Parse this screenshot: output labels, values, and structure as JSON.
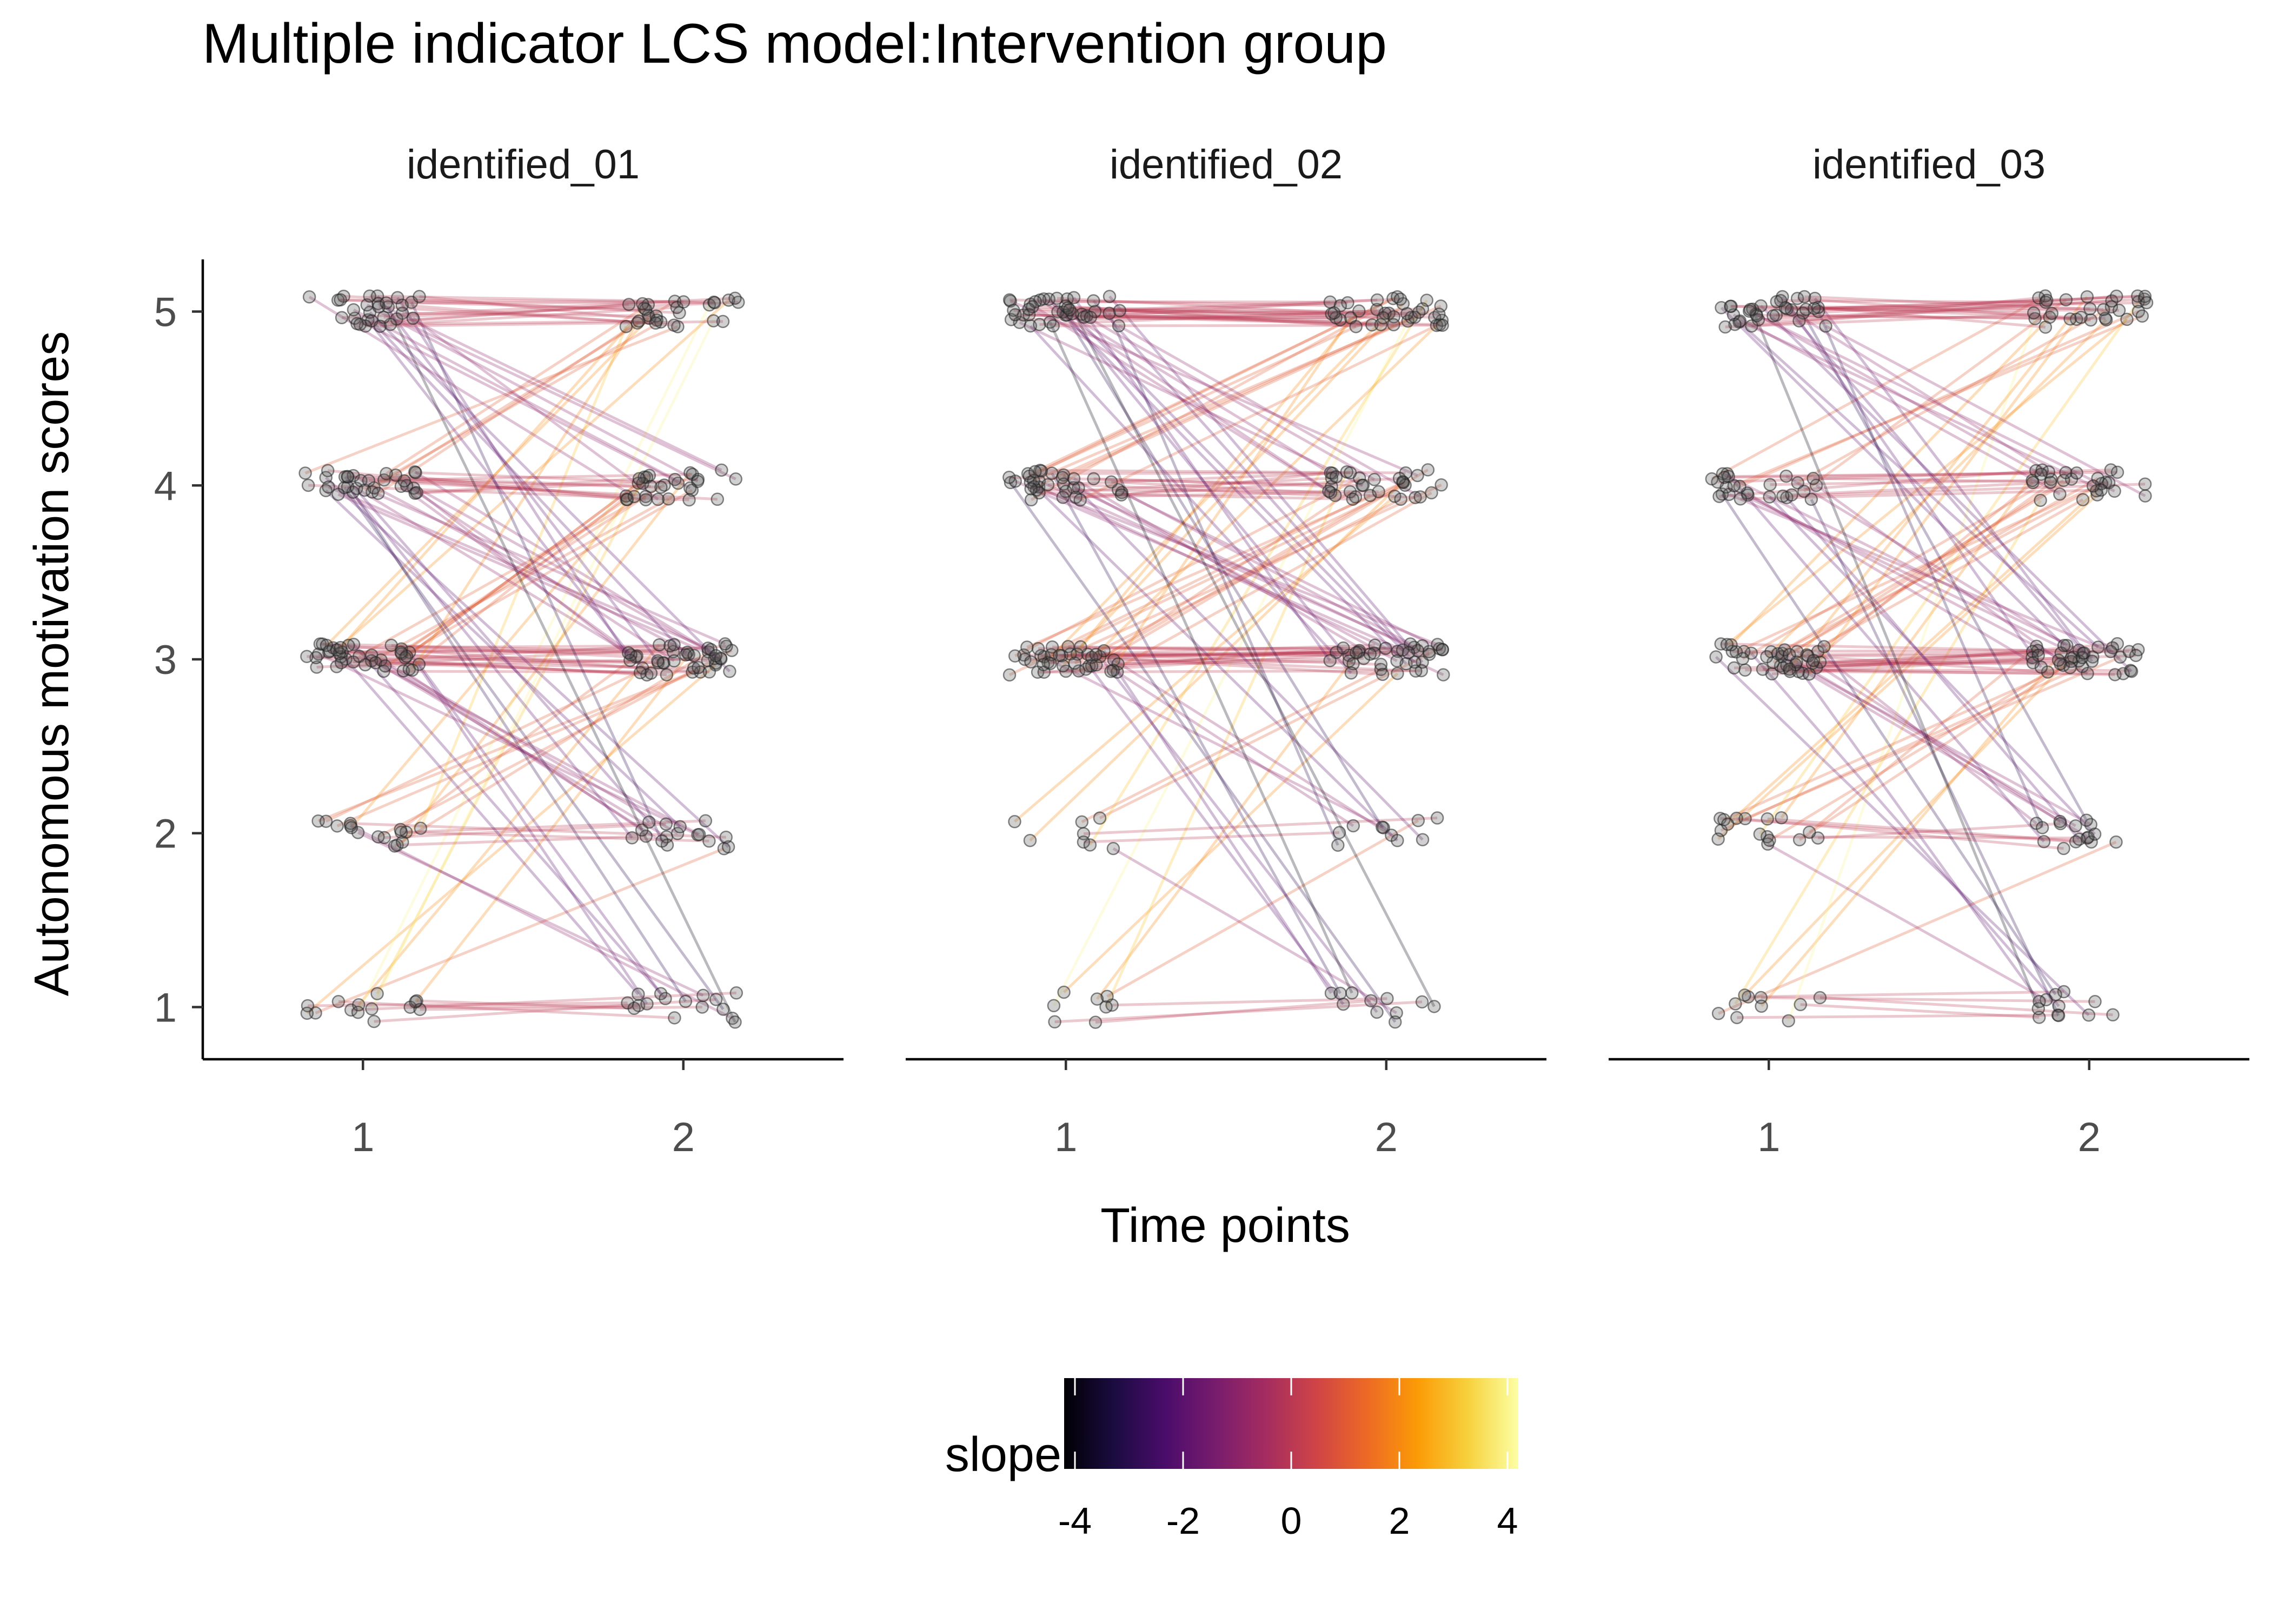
{
  "chart_data": {
    "type": "line",
    "title": "Multiple indicator LCS model:Intervention group",
    "xlabel": "Time points",
    "ylabel": "Autonomous motivation scores",
    "x_ticks": [
      "1",
      "2"
    ],
    "y_ticks": [
      "1",
      "2",
      "3",
      "4",
      "5"
    ],
    "xlim": [
      0.5,
      2.5
    ],
    "ylim": [
      0.7,
      5.3
    ],
    "grid": false,
    "panels": [
      {
        "name": "identified_01",
        "t1_counts": {
          "1": 14,
          "2": 16,
          "3": 40,
          "4": 32,
          "5": 30
        },
        "transitions": [
          {
            "from": 1,
            "to": 1,
            "n": 7
          },
          {
            "from": 1,
            "to": 2,
            "n": 1
          },
          {
            "from": 1,
            "to": 3,
            "n": 3
          },
          {
            "from": 1,
            "to": 4,
            "n": 1
          },
          {
            "from": 1,
            "to": 5,
            "n": 2
          },
          {
            "from": 2,
            "to": 1,
            "n": 2
          },
          {
            "from": 2,
            "to": 2,
            "n": 5
          },
          {
            "from": 2,
            "to": 3,
            "n": 6
          },
          {
            "from": 2,
            "to": 4,
            "n": 2
          },
          {
            "from": 2,
            "to": 5,
            "n": 1
          },
          {
            "from": 3,
            "to": 1,
            "n": 4
          },
          {
            "from": 3,
            "to": 2,
            "n": 6
          },
          {
            "from": 3,
            "to": 3,
            "n": 18
          },
          {
            "from": 3,
            "to": 4,
            "n": 8
          },
          {
            "from": 3,
            "to": 5,
            "n": 4
          },
          {
            "from": 4,
            "to": 1,
            "n": 2
          },
          {
            "from": 4,
            "to": 2,
            "n": 4
          },
          {
            "from": 4,
            "to": 3,
            "n": 10
          },
          {
            "from": 4,
            "to": 4,
            "n": 11
          },
          {
            "from": 4,
            "to": 5,
            "n": 5
          },
          {
            "from": 5,
            "to": 1,
            "n": 1
          },
          {
            "from": 5,
            "to": 2,
            "n": 1
          },
          {
            "from": 5,
            "to": 3,
            "n": 5
          },
          {
            "from": 5,
            "to": 4,
            "n": 7
          },
          {
            "from": 5,
            "to": 5,
            "n": 16
          }
        ]
      },
      {
        "name": "identified_02",
        "t1_counts": {
          "1": 8,
          "2": 8,
          "3": 40,
          "4": 34,
          "5": 40
        },
        "transitions": [
          {
            "from": 1,
            "to": 1,
            "n": 3
          },
          {
            "from": 1,
            "to": 2,
            "n": 1
          },
          {
            "from": 1,
            "to": 3,
            "n": 2
          },
          {
            "from": 1,
            "to": 4,
            "n": 1
          },
          {
            "from": 1,
            "to": 5,
            "n": 1
          },
          {
            "from": 2,
            "to": 1,
            "n": 1
          },
          {
            "from": 2,
            "to": 2,
            "n": 2
          },
          {
            "from": 2,
            "to": 3,
            "n": 2
          },
          {
            "from": 2,
            "to": 4,
            "n": 2
          },
          {
            "from": 2,
            "to": 5,
            "n": 1
          },
          {
            "from": 3,
            "to": 1,
            "n": 3
          },
          {
            "from": 3,
            "to": 2,
            "n": 3
          },
          {
            "from": 3,
            "to": 3,
            "n": 19
          },
          {
            "from": 3,
            "to": 4,
            "n": 10
          },
          {
            "from": 3,
            "to": 5,
            "n": 5
          },
          {
            "from": 4,
            "to": 1,
            "n": 2
          },
          {
            "from": 4,
            "to": 2,
            "n": 2
          },
          {
            "from": 4,
            "to": 3,
            "n": 9
          },
          {
            "from": 4,
            "to": 4,
            "n": 13
          },
          {
            "from": 4,
            "to": 5,
            "n": 8
          },
          {
            "from": 5,
            "to": 1,
            "n": 2
          },
          {
            "from": 5,
            "to": 2,
            "n": 2
          },
          {
            "from": 5,
            "to": 3,
            "n": 7
          },
          {
            "from": 5,
            "to": 4,
            "n": 7
          },
          {
            "from": 5,
            "to": 5,
            "n": 22
          }
        ]
      },
      {
        "name": "identified_03",
        "t1_counts": {
          "1": 10,
          "2": 16,
          "3": 40,
          "4": 26,
          "5": 34
        },
        "transitions": [
          {
            "from": 1,
            "to": 1,
            "n": 5
          },
          {
            "from": 1,
            "to": 2,
            "n": 1
          },
          {
            "from": 1,
            "to": 3,
            "n": 2
          },
          {
            "from": 1,
            "to": 4,
            "n": 1
          },
          {
            "from": 1,
            "to": 5,
            "n": 1
          },
          {
            "from": 2,
            "to": 1,
            "n": 1
          },
          {
            "from": 2,
            "to": 2,
            "n": 5
          },
          {
            "from": 2,
            "to": 3,
            "n": 6
          },
          {
            "from": 2,
            "to": 4,
            "n": 3
          },
          {
            "from": 2,
            "to": 5,
            "n": 1
          },
          {
            "from": 3,
            "to": 1,
            "n": 3
          },
          {
            "from": 3,
            "to": 2,
            "n": 5
          },
          {
            "from": 3,
            "to": 3,
            "n": 18
          },
          {
            "from": 3,
            "to": 4,
            "n": 9
          },
          {
            "from": 3,
            "to": 5,
            "n": 5
          },
          {
            "from": 4,
            "to": 1,
            "n": 2
          },
          {
            "from": 4,
            "to": 2,
            "n": 3
          },
          {
            "from": 4,
            "to": 3,
            "n": 7
          },
          {
            "from": 4,
            "to": 4,
            "n": 9
          },
          {
            "from": 4,
            "to": 5,
            "n": 5
          },
          {
            "from": 5,
            "to": 1,
            "n": 1
          },
          {
            "from": 5,
            "to": 2,
            "n": 2
          },
          {
            "from": 5,
            "to": 3,
            "n": 6
          },
          {
            "from": 5,
            "to": 4,
            "n": 6
          },
          {
            "from": 5,
            "to": 5,
            "n": 19
          }
        ]
      }
    ],
    "legend": {
      "title": "slope",
      "ticks": [
        "-4",
        "-2",
        "0",
        "2",
        "4"
      ],
      "range": [
        -4.2,
        4.2
      ],
      "placement": "bottom",
      "colormap": [
        "#000004",
        "#1B0C41",
        "#4A0C6B",
        "#781C6D",
        "#A52C60",
        "#CF4446",
        "#ED6925",
        "#FB9B06",
        "#F7D13D",
        "#FCFFA4"
      ]
    }
  }
}
